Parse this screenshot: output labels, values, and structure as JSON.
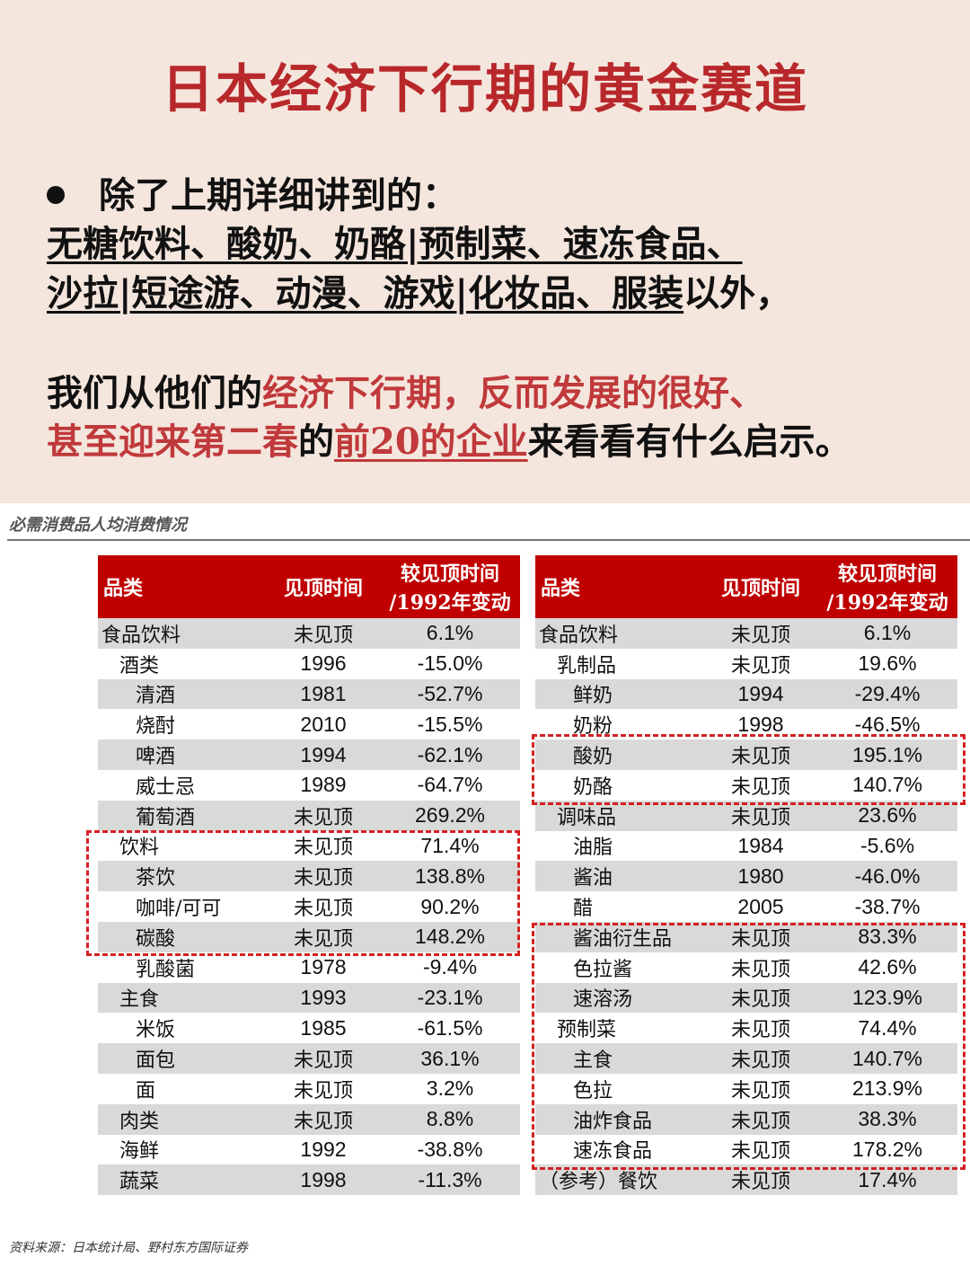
{
  "header": {
    "title": "日本经济下行期的黄金赛道",
    "intro": "除了上期详细讲到的：",
    "list_line1": "无糖饮料、酸奶、奶酪|预制菜、速冻食品、",
    "list_line2_ul": "沙拉|短途游、动漫、游戏|化妆品、服装",
    "list_line2_tail": "以外，",
    "para_a": "我们从他们的",
    "para_b": "经济下行期，反而发展的很好、",
    "para_c": "甚至迎来第二春",
    "para_d": "的",
    "para_e": "前20的企业",
    "para_f": "来看看有什么启示。"
  },
  "figure": {
    "caption": "必需消费品人均消费情况",
    "source": "资料来源：日本统计局、野村东方国际证券",
    "columns": [
      "品类",
      "见顶时间",
      "较见顶时间",
      "/1992年变动"
    ],
    "left_rows": [
      {
        "name": "食品饮料",
        "level": 0,
        "peak": "未见顶",
        "change": "6.1%"
      },
      {
        "name": "酒类",
        "level": 1,
        "peak": "1996",
        "change": "-15.0%"
      },
      {
        "name": "清酒",
        "level": 2,
        "peak": "1981",
        "change": "-52.7%"
      },
      {
        "name": "烧酎",
        "level": 2,
        "peak": "2010",
        "change": "-15.5%"
      },
      {
        "name": "啤酒",
        "level": 2,
        "peak": "1994",
        "change": "-62.1%"
      },
      {
        "name": "威士忌",
        "level": 2,
        "peak": "1989",
        "change": "-64.7%"
      },
      {
        "name": "葡萄酒",
        "level": 2,
        "peak": "未见顶",
        "change": "269.2%"
      },
      {
        "name": "饮料",
        "level": 1,
        "peak": "未见顶",
        "change": "71.4%"
      },
      {
        "name": "茶饮",
        "level": 2,
        "peak": "未见顶",
        "change": "138.8%"
      },
      {
        "name": "咖啡/可可",
        "level": 2,
        "peak": "未见顶",
        "change": "90.2%"
      },
      {
        "name": "碳酸",
        "level": 2,
        "peak": "未见顶",
        "change": "148.2%"
      },
      {
        "name": "乳酸菌",
        "level": 2,
        "peak": "1978",
        "change": "-9.4%"
      },
      {
        "name": "主食",
        "level": 1,
        "peak": "1993",
        "change": "-23.1%"
      },
      {
        "name": "米饭",
        "level": 2,
        "peak": "1985",
        "change": "-61.5%"
      },
      {
        "name": "面包",
        "level": 2,
        "peak": "未见顶",
        "change": "36.1%"
      },
      {
        "name": "面",
        "level": 2,
        "peak": "未见顶",
        "change": "3.2%"
      },
      {
        "name": "肉类",
        "level": 1,
        "peak": "未见顶",
        "change": "8.8%"
      },
      {
        "name": "海鲜",
        "level": 1,
        "peak": "1992",
        "change": "-38.8%"
      },
      {
        "name": "蔬菜",
        "level": 1,
        "peak": "1998",
        "change": "-11.3%"
      }
    ],
    "right_rows": [
      {
        "name": "食品饮料",
        "level": 0,
        "peak": "未见顶",
        "change": "6.1%"
      },
      {
        "name": "乳制品",
        "level": 1,
        "peak": "未见顶",
        "change": "19.6%"
      },
      {
        "name": "鲜奶",
        "level": 2,
        "peak": "1994",
        "change": "-29.4%"
      },
      {
        "name": "奶粉",
        "level": 2,
        "peak": "1998",
        "change": "-46.5%"
      },
      {
        "name": "酸奶",
        "level": 2,
        "peak": "未见顶",
        "change": "195.1%"
      },
      {
        "name": "奶酪",
        "level": 2,
        "peak": "未见顶",
        "change": "140.7%"
      },
      {
        "name": "调味品",
        "level": 1,
        "peak": "未见顶",
        "change": "23.6%"
      },
      {
        "name": "油脂",
        "level": 2,
        "peak": "1984",
        "change": "-5.6%"
      },
      {
        "name": "酱油",
        "level": 2,
        "peak": "1980",
        "change": "-46.0%"
      },
      {
        "name": "醋",
        "level": 2,
        "peak": "2005",
        "change": "-38.7%"
      },
      {
        "name": "酱油衍生品",
        "level": 2,
        "peak": "未见顶",
        "change": "83.3%"
      },
      {
        "name": "色拉酱",
        "level": 2,
        "peak": "未见顶",
        "change": "42.6%"
      },
      {
        "name": "速溶汤",
        "level": 2,
        "peak": "未见顶",
        "change": "123.9%"
      },
      {
        "name": "预制菜",
        "level": 1,
        "peak": "未见顶",
        "change": "74.4%"
      },
      {
        "name": "主食",
        "level": 2,
        "peak": "未见顶",
        "change": "140.7%"
      },
      {
        "name": "色拉",
        "level": 2,
        "peak": "未见顶",
        "change": "213.9%"
      },
      {
        "name": "油炸食品",
        "level": 2,
        "peak": "未见顶",
        "change": "38.3%"
      },
      {
        "name": "速冻食品",
        "level": 2,
        "peak": "未见顶",
        "change": "178.2%"
      },
      {
        "name": "（参考）餐饮",
        "level": 0,
        "peak": "未见顶",
        "change": "17.4%"
      }
    ]
  },
  "colors": {
    "title_red": "#b8282b",
    "accent_red": "#c0393b",
    "header_bg": "#c00000",
    "zebra": "#d9d9d9",
    "highlight_dash": "#d62020",
    "top_bg": "#f4e6dd"
  }
}
